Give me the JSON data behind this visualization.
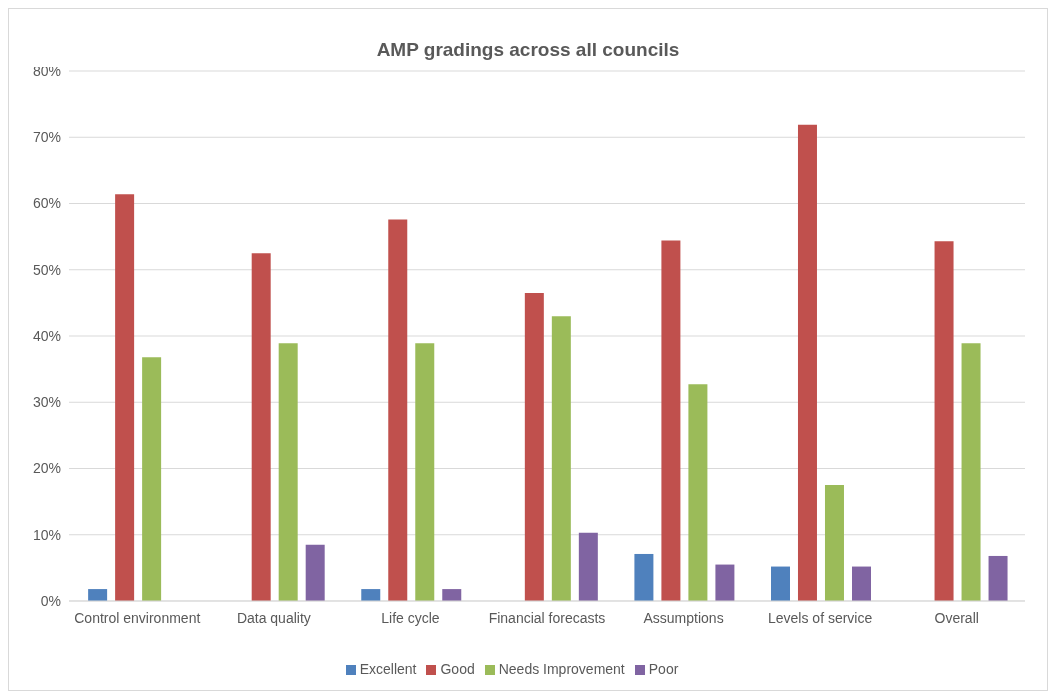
{
  "chart_data": {
    "type": "bar",
    "title": "AMP gradings across all councils",
    "categories": [
      "Control environment",
      "Data quality",
      "Life cycle",
      "Financial forecasts",
      "Assumptions",
      "Levels of service",
      "Overall"
    ],
    "series": [
      {
        "name": "Excellent",
        "color": "#4f81bd",
        "values": [
          1.8,
          0,
          1.8,
          0,
          7.1,
          5.2,
          0
        ]
      },
      {
        "name": "Good",
        "color": "#c0504d",
        "values": [
          61.4,
          52.5,
          57.6,
          46.5,
          54.4,
          71.9,
          54.3
        ]
      },
      {
        "name": "Needs Improvement",
        "color": "#9bbb59",
        "values": [
          36.8,
          38.9,
          38.9,
          43.0,
          32.7,
          17.5,
          38.9
        ]
      },
      {
        "name": "Poor",
        "color": "#8064a2",
        "values": [
          0,
          8.5,
          1.8,
          10.3,
          5.5,
          5.2,
          6.8
        ]
      }
    ],
    "ylim": [
      0,
      80
    ],
    "yticks": [
      {
        "value": 0,
        "label": "0%"
      },
      {
        "value": 10,
        "label": "10%"
      },
      {
        "value": 20,
        "label": "20%"
      },
      {
        "value": 30,
        "label": "30%"
      },
      {
        "value": 40,
        "label": "40%"
      },
      {
        "value": 50,
        "label": "50%"
      },
      {
        "value": 60,
        "label": "60%"
      },
      {
        "value": 70,
        "label": "70%"
      },
      {
        "value": 80,
        "label": "80%"
      }
    ],
    "grid": "y",
    "legend": "bottom"
  }
}
